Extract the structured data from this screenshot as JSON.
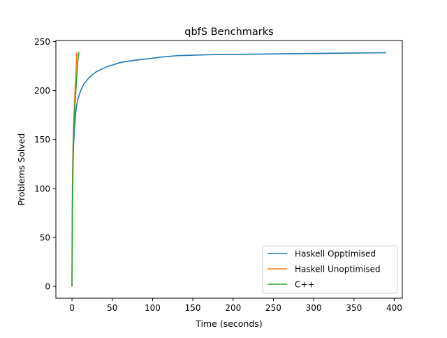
{
  "chart_data": {
    "type": "line",
    "title": "qbfS Benchmarks",
    "xlabel": "Time (seconds)",
    "ylabel": "Problems Solved",
    "xlim": [
      -20,
      410
    ],
    "ylim": [
      -12,
      251
    ],
    "xticks": [
      0,
      50,
      100,
      150,
      200,
      250,
      300,
      350,
      400
    ],
    "yticks": [
      0,
      50,
      100,
      150,
      200,
      250
    ],
    "grid": false,
    "legend_position": "lower-right",
    "series": [
      {
        "name": "Haskell Opptimised",
        "color": "#1f77b4",
        "points": [
          [
            0,
            0
          ],
          [
            0.3,
            40
          ],
          [
            0.6,
            80
          ],
          [
            1,
            110
          ],
          [
            1.5,
            130
          ],
          [
            2,
            145
          ],
          [
            3,
            160
          ],
          [
            4,
            172
          ],
          [
            5,
            180
          ],
          [
            6,
            186
          ],
          [
            8,
            193
          ],
          [
            10,
            198
          ],
          [
            12,
            202
          ],
          [
            15,
            207
          ],
          [
            20,
            212
          ],
          [
            25,
            216
          ],
          [
            30,
            219
          ],
          [
            35,
            221
          ],
          [
            40,
            223
          ],
          [
            44,
            224.5
          ],
          [
            50,
            226
          ],
          [
            60,
            228.5
          ],
          [
            70,
            230
          ],
          [
            80,
            231
          ],
          [
            90,
            232
          ],
          [
            100,
            233
          ],
          [
            110,
            234
          ],
          [
            130,
            235.5
          ],
          [
            150,
            236
          ],
          [
            170,
            236.5
          ],
          [
            200,
            236.8
          ],
          [
            250,
            237.3
          ],
          [
            300,
            237.8
          ],
          [
            350,
            238.2
          ],
          [
            390,
            238.6
          ]
        ]
      },
      {
        "name": "Haskell Unoptimised",
        "color": "#ff7f0e",
        "points": [
          [
            0,
            0
          ],
          [
            0.2,
            60
          ],
          [
            0.5,
            100
          ],
          [
            1,
            130
          ],
          [
            1.5,
            150
          ],
          [
            2,
            165
          ],
          [
            3,
            185
          ],
          [
            4,
            205
          ],
          [
            5,
            222
          ],
          [
            6,
            239
          ]
        ]
      },
      {
        "name": "C++",
        "color": "#2ca02c",
        "points": [
          [
            0,
            0
          ],
          [
            0.3,
            60
          ],
          [
            0.7,
            100
          ],
          [
            1,
            120
          ],
          [
            1.5,
            140
          ],
          [
            2,
            155
          ],
          [
            3,
            175
          ],
          [
            4,
            190
          ],
          [
            5,
            203
          ],
          [
            6,
            215
          ],
          [
            7,
            228
          ],
          [
            8,
            236
          ],
          [
            9,
            239
          ]
        ]
      }
    ]
  }
}
